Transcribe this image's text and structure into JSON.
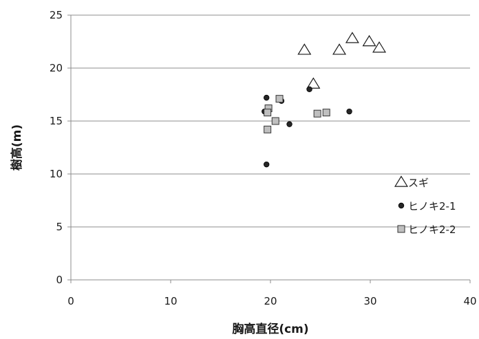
{
  "chart_data": {
    "type": "scatter",
    "title": "",
    "xlabel": "胸高直径(cm)",
    "ylabel": "樹高(m)",
    "xlim": [
      0,
      40
    ],
    "ylim": [
      0,
      25
    ],
    "x_ticks": [
      "0",
      "10",
      "20",
      "30",
      "40"
    ],
    "y_ticks": [
      "0",
      "5",
      "10",
      "15",
      "20",
      "25"
    ],
    "grid": "horizontal",
    "legend_position": "right",
    "series": [
      {
        "name": "スギ",
        "marker": "triangle",
        "color": "#ffffff",
        "points": [
          [
            23.4,
            21.7
          ],
          [
            24.3,
            18.5
          ],
          [
            26.9,
            21.7
          ],
          [
            28.2,
            22.8
          ],
          [
            29.9,
            22.5
          ],
          [
            30.9,
            21.9
          ]
        ]
      },
      {
        "name": "ヒノキ2-1",
        "marker": "circle",
        "color": "#262626",
        "points": [
          [
            19.6,
            17.2
          ],
          [
            19.4,
            15.9
          ],
          [
            21.1,
            16.9
          ],
          [
            21.9,
            14.7
          ],
          [
            19.6,
            10.9
          ],
          [
            23.9,
            18.0
          ],
          [
            27.9,
            15.9
          ]
        ]
      },
      {
        "name": "ヒノキ2-2",
        "marker": "square",
        "color": "#bfbfbf",
        "points": [
          [
            20.9,
            17.1
          ],
          [
            19.8,
            16.2
          ],
          [
            19.7,
            15.8
          ],
          [
            20.5,
            15.0
          ],
          [
            19.7,
            14.2
          ],
          [
            24.7,
            15.7
          ],
          [
            25.6,
            15.8
          ]
        ]
      }
    ]
  }
}
